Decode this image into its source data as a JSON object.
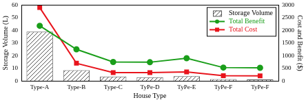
{
  "chart_data": {
    "type": "bar",
    "x_label": "House Type",
    "y_label": "Storage Volume (L)",
    "y2_label": "Cost and Benefit ($)",
    "categories": [
      "Type-A",
      "Type-B",
      "Type-C",
      "TyPe-D",
      "TyPe-E",
      "TyPe-F",
      "TyPe-F"
    ],
    "series": [
      {
        "name": "Storage Volume",
        "type": "bar",
        "color": "#555555",
        "axis": "y",
        "values": [
          39,
          8.5,
          3.5,
          3,
          3.8,
          1.5,
          1.2
        ]
      },
      {
        "name": "Total Benefit",
        "type": "line",
        "color": "#1a9e1a",
        "marker": "circle",
        "axis": "y2",
        "values": [
          2180,
          1250,
          750,
          740,
          900,
          530,
          520
        ]
      },
      {
        "name": "Total Cost",
        "type": "line",
        "color": "#e8141c",
        "marker": "square",
        "axis": "y2",
        "values": [
          2900,
          700,
          330,
          330,
          360,
          210,
          200
        ]
      }
    ],
    "ylim": [
      0,
      60
    ],
    "yticks": [
      0,
      10,
      20,
      30,
      40,
      50,
      60
    ],
    "y2lim": [
      0,
      3000
    ],
    "y2ticks": [
      0,
      500,
      1000,
      1500,
      2000,
      2500,
      3000
    ],
    "grid": false,
    "legend": "upper right"
  }
}
